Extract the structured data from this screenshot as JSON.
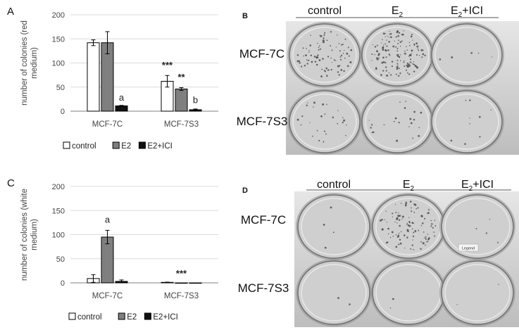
{
  "colors": {
    "control": "#ffffff",
    "e2": "#7f7f7f",
    "e2ici": "#111111",
    "axis": "#7f7f7f",
    "grid": "#d9d9d9",
    "photo_bg_top": "#e6e6e6",
    "photo_bg_bottom": "#bdbdbd"
  },
  "panels": {
    "a_letter": "A",
    "b_letter": "B",
    "c_letter": "C",
    "d_letter": "D"
  },
  "chart_data": [
    {
      "type": "bar",
      "panel": "A",
      "ylabel": "number of colonies (red medium)",
      "ylabel_lines": [
        "number of colonies (red",
        "medium)"
      ],
      "ylim": [
        0,
        200
      ],
      "yticks": [
        0,
        50,
        100,
        150,
        200
      ],
      "grid": true,
      "categories": [
        "MCF-7C",
        "MCF-7S3"
      ],
      "series": [
        {
          "name": "control",
          "values": [
            142,
            62
          ],
          "errors": [
            6,
            12
          ]
        },
        {
          "name": "E2",
          "values": [
            142,
            46
          ],
          "errors": [
            23,
            3
          ]
        },
        {
          "name": "E2+ICI",
          "values": [
            11,
            3
          ],
          "errors": [
            1,
            1.5
          ]
        }
      ],
      "annotations": [
        {
          "text": "a",
          "category": 0,
          "series": 2,
          "y": 22
        },
        {
          "text": "***",
          "category": 1,
          "series": 0,
          "y": 89
        },
        {
          "text": "**",
          "category": 1,
          "series": 1,
          "y": 64
        },
        {
          "text": "b",
          "category": 1,
          "series": 2,
          "y": 17
        }
      ],
      "legend": [
        "control",
        "E2",
        "E2+ICI"
      ],
      "legend_position": "bottom"
    },
    {
      "type": "bar",
      "panel": "C",
      "ylabel": "number of colonies (white medium)",
      "ylabel_lines": [
        "number of colonies (white",
        "medium)"
      ],
      "ylim": [
        0,
        200
      ],
      "yticks": [
        0,
        50,
        100,
        150,
        200
      ],
      "grid": true,
      "categories": [
        "MCF-7C",
        "MCF-7S3"
      ],
      "series": [
        {
          "name": "control",
          "values": [
            9,
            1
          ],
          "errors": [
            8,
            0.5
          ]
        },
        {
          "name": "E2",
          "values": [
            95,
            0
          ],
          "errors": [
            14,
            0
          ]
        },
        {
          "name": "E2+ICI",
          "values": [
            3,
            0
          ],
          "errors": [
            3,
            0
          ]
        }
      ],
      "annotations": [
        {
          "text": "a",
          "category": 0,
          "series": 1,
          "y": 125
        },
        {
          "text": "***",
          "category": 1,
          "series": 1,
          "y": 13
        }
      ],
      "legend": [
        "control",
        "E2",
        "E2+ICI"
      ],
      "legend_position": "bottom"
    }
  ],
  "photo_b": {
    "headers": [
      "control",
      "E2",
      "E2+ICI"
    ],
    "header_sub": "2",
    "rows": [
      "MCF-7C",
      "MCF-7S3"
    ],
    "colony_density": [
      [
        0.5,
        0.8,
        0.03
      ],
      [
        0.15,
        0.12,
        0.05
      ]
    ]
  },
  "photo_d": {
    "headers": [
      "control",
      "E2",
      "E2+ICI"
    ],
    "header_sub": "2",
    "rows": [
      "MCF-7C",
      "MCF-7S3"
    ],
    "label_tag": "Legend",
    "colony_density": [
      [
        0.02,
        0.6,
        0.02
      ],
      [
        0.01,
        0.01,
        0.01
      ]
    ]
  }
}
